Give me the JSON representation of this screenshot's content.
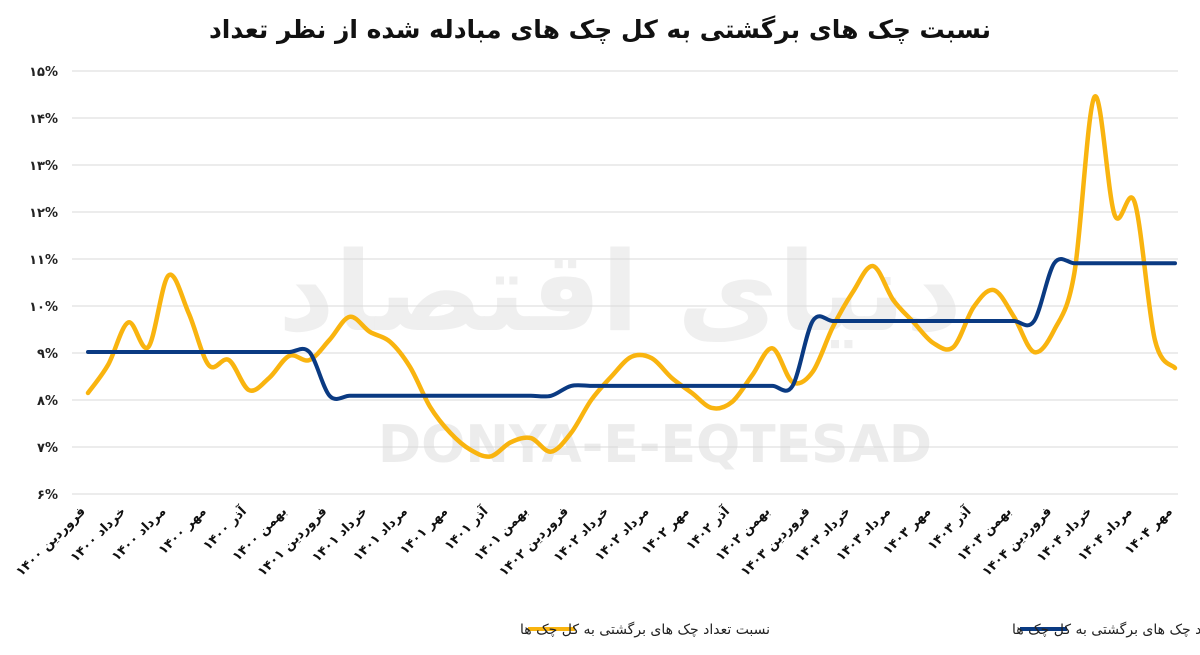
{
  "chart_data": {
    "type": "line",
    "title": "نسبت چک های برگشتی به کل چک های مبادله شده از نظر تعداد",
    "xlabel": "",
    "ylabel": "",
    "ylim": [
      6,
      15
    ],
    "y_ticks": [
      "۶%",
      "۷%",
      "۸%",
      "۹%",
      "۱۰%",
      "۱۱%",
      "۱۲%",
      "۱۳%",
      "۱۴%",
      "۱۵%"
    ],
    "y_tick_values": [
      6,
      7,
      8,
      9,
      10,
      11,
      12,
      13,
      14,
      15
    ],
    "grid": true,
    "legend_position": "bottom",
    "x_tick_labels": [
      "فروردین ۱۴۰۰",
      "خرداد ۱۴۰۰",
      "مرداد ۱۴۰۰",
      "مهر ۱۴۰۰",
      "آذر ۱۴۰۰",
      "بهمن ۱۴۰۰",
      "فروردین ۱۴۰۱",
      "خرداد ۱۴۰۱",
      "مرداد ۱۴۰۱",
      "مهر ۱۴۰۱",
      "آذر ۱۴۰۱",
      "بهمن ۱۴۰۱",
      "فروردین ۱۴۰۲",
      "خرداد ۱۴۰۲",
      "مرداد ۱۴۰۲",
      "مهر ۱۴۰۲",
      "آذر ۱۴۰۲",
      "بهمن ۱۴۰۲",
      "فروردین ۱۴۰۳",
      "خرداد ۱۴۰۳",
      "مرداد ۱۴۰۳",
      "مهر ۱۴۰۳",
      "آذر ۱۴۰۳",
      "بهمن ۱۴۰۳",
      "فروردین ۱۴۰۴",
      "خرداد ۱۴۰۴",
      "مرداد ۱۴۰۴",
      "مهر ۱۴۰۴"
    ],
    "series": [
      {
        "name": "نسبت تعداد چک های برگشتی به کل چک ها",
        "color": "#F9B40F",
        "values": [
          8.15,
          8.75,
          9.65,
          9.13,
          10.65,
          9.85,
          8.74,
          8.85,
          8.21,
          8.47,
          8.94,
          8.85,
          9.28,
          9.77,
          9.45,
          9.24,
          8.7,
          7.85,
          7.3,
          6.94,
          6.8,
          7.1,
          7.19,
          6.9,
          7.3,
          8.0,
          8.5,
          8.92,
          8.89,
          8.47,
          8.15,
          7.83,
          7.96,
          8.53,
          9.1,
          8.38,
          8.6,
          9.55,
          10.3,
          10.85,
          10.13,
          9.66,
          9.21,
          9.13,
          9.98,
          10.34,
          9.77,
          9.02,
          9.49,
          10.7,
          14.45,
          11.94,
          12.2,
          9.28,
          8.68
        ]
      },
      {
        "name": "میانگین سالانه نسبت تعداد چک های برگشتی به کل چک ها",
        "color": "#0A3A82",
        "values": [
          9.02,
          9.02,
          9.02,
          9.02,
          9.02,
          9.02,
          9.02,
          9.02,
          9.02,
          9.02,
          9.02,
          9.02,
          8.09,
          8.09,
          8.09,
          8.09,
          8.09,
          8.09,
          8.09,
          8.09,
          8.09,
          8.09,
          8.09,
          8.09,
          8.3,
          8.3,
          8.3,
          8.3,
          8.3,
          8.3,
          8.3,
          8.3,
          8.3,
          8.3,
          8.3,
          8.3,
          9.68,
          9.68,
          9.68,
          9.68,
          9.68,
          9.68,
          9.68,
          9.68,
          9.68,
          9.68,
          9.68,
          9.68,
          10.91,
          10.91,
          10.91,
          10.91,
          10.91,
          10.91,
          10.91
        ]
      }
    ]
  },
  "watermark": {
    "latin": "DONYA-E-EQTESAD",
    "persian": "دنیای اقتصاد"
  }
}
